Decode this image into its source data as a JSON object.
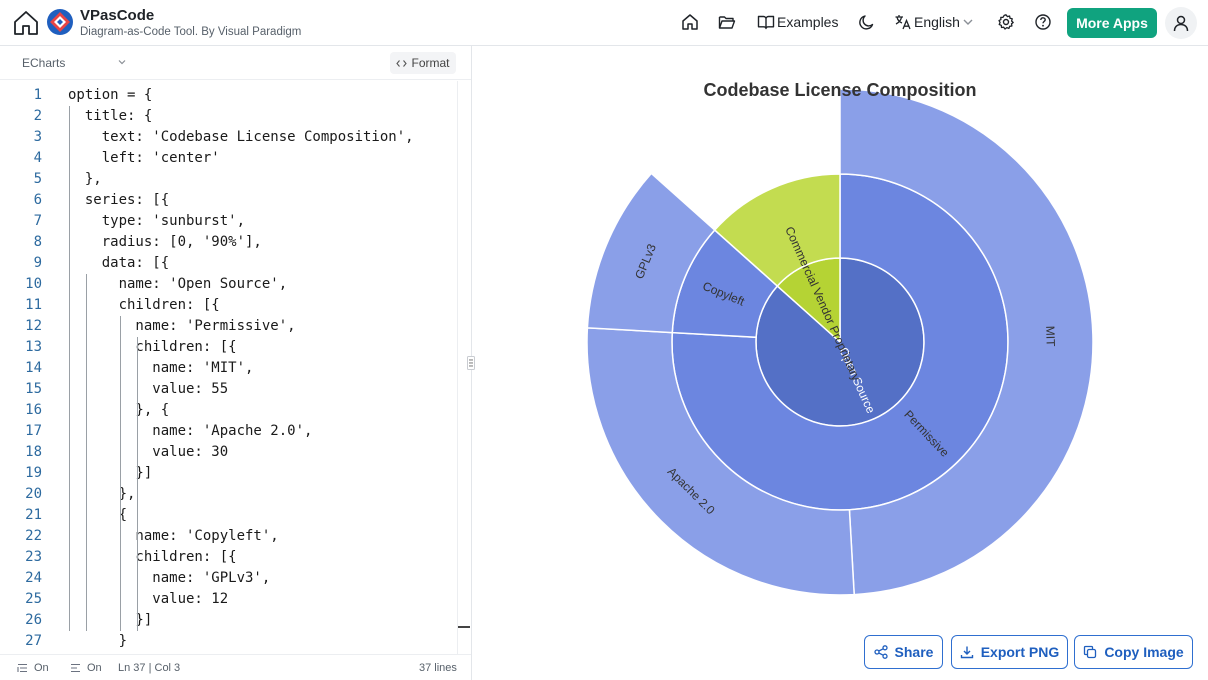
{
  "header": {
    "app_name": "VPasCode",
    "tagline": "Diagram-as-Code Tool. By Visual Paradigm",
    "examples_label": "Examples",
    "language_label": "English",
    "more_apps_label": "More Apps"
  },
  "editor": {
    "language": "ECharts",
    "format_label": "Format",
    "lines": [
      {
        "n": "1",
        "t": "option = {"
      },
      {
        "n": "2",
        "t": "  title: {"
      },
      {
        "n": "3",
        "t": "    text: 'Codebase License Composition',"
      },
      {
        "n": "4",
        "t": "    left: 'center'"
      },
      {
        "n": "5",
        "t": "  },"
      },
      {
        "n": "6",
        "t": "  series: [{"
      },
      {
        "n": "7",
        "t": "    type: 'sunburst',"
      },
      {
        "n": "8",
        "t": "    radius: [0, '90%'],"
      },
      {
        "n": "9",
        "t": "    data: [{"
      },
      {
        "n": "10",
        "t": "      name: 'Open Source',"
      },
      {
        "n": "11",
        "t": "      children: [{"
      },
      {
        "n": "12",
        "t": "        name: 'Permissive',"
      },
      {
        "n": "13",
        "t": "        children: [{"
      },
      {
        "n": "14",
        "t": "          name: 'MIT',"
      },
      {
        "n": "15",
        "t": "          value: 55"
      },
      {
        "n": "16",
        "t": "        }, {"
      },
      {
        "n": "17",
        "t": "          name: 'Apache 2.0',"
      },
      {
        "n": "18",
        "t": "          value: 30"
      },
      {
        "n": "19",
        "t": "        }]"
      },
      {
        "n": "20",
        "t": "      },"
      },
      {
        "n": "21",
        "t": "      {"
      },
      {
        "n": "22",
        "t": "        name: 'Copyleft',"
      },
      {
        "n": "23",
        "t": "        children: [{"
      },
      {
        "n": "24",
        "t": "          name: 'GPLv3',"
      },
      {
        "n": "25",
        "t": "          value: 12"
      },
      {
        "n": "26",
        "t": "        }]"
      },
      {
        "n": "27",
        "t": "      }"
      }
    ]
  },
  "status": {
    "wrap_state": "On",
    "minimap_state": "On",
    "cursor": "Ln 37 | Col 3",
    "line_count": "37 lines"
  },
  "chart_data": {
    "type": "sunburst",
    "title": "Codebase License Composition",
    "start_angle_deg": 90,
    "rings": [
      {
        "depth": 1,
        "slices": [
          {
            "name": "Open Source",
            "value": 97,
            "color": "#5470c6"
          },
          {
            "name": "Commercial Vendor Proprietary",
            "value": 15,
            "color": "#b5d334"
          }
        ]
      },
      {
        "depth": 2,
        "slices": [
          {
            "name": "Permissive",
            "value": 85,
            "color": "#6c86e0"
          },
          {
            "name": "Copyleft",
            "value": 12,
            "color": "#6c86e0"
          },
          {
            "name": "",
            "value": 15,
            "color": "#c3dc50"
          }
        ]
      },
      {
        "depth": 3,
        "slices": [
          {
            "name": "MIT",
            "value": 55,
            "color": "#8a9fe8"
          },
          {
            "name": "Apache 2.0",
            "value": 30,
            "color": "#8a9fe8"
          },
          {
            "name": "GPLv3",
            "value": 12,
            "color": "#8a9fe8"
          }
        ]
      }
    ]
  },
  "actions": {
    "share_label": "Share",
    "export_label": "Export PNG",
    "copy_label": "Copy Image"
  }
}
